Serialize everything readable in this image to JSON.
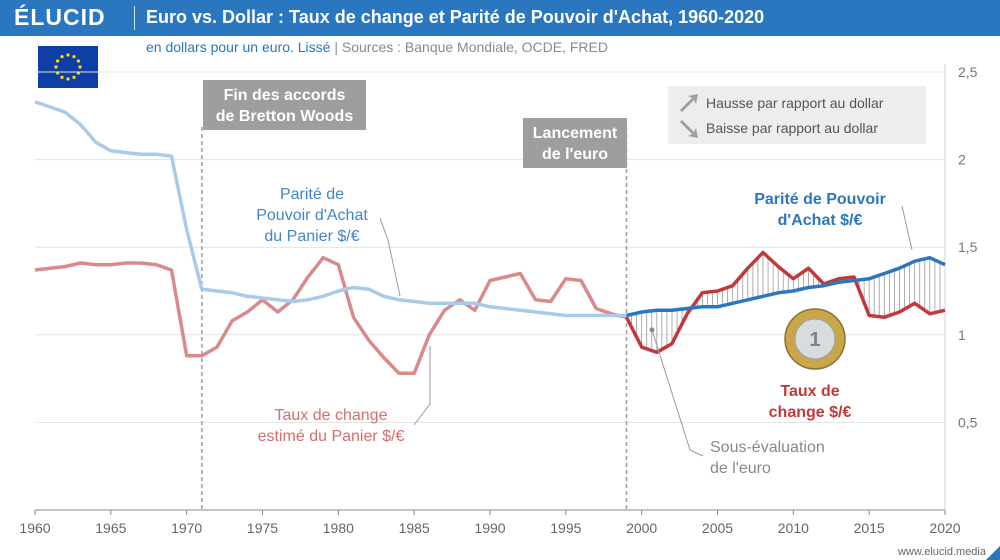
{
  "header": {
    "logo": "ÉLUCID",
    "title": "Euro vs. Dollar : Taux de change et Parité de Pouvoir d'Achat, 1960-2020",
    "subtitle": "en dollars pour un euro. Lissé",
    "sources": "Sources : Banque Mondiale, OCDE, FRED"
  },
  "footer": {
    "url": "www.elucid.media"
  },
  "colors": {
    "brand": "#2b77bf",
    "ppp_before": "#a9cbe8",
    "ppp_after": "#2b77bf",
    "fx_before": "#d98a8a",
    "fx_after": "#c03a3a",
    "annotation_box": "#9e9e9e"
  },
  "legend": {
    "up": "Hausse par rapport au dollar",
    "down": "Baisse par rapport au dollar"
  },
  "annotations": {
    "bretton_woods": [
      "Fin des accords",
      "de Bretton Woods"
    ],
    "euro_launch": [
      "Lancement",
      "de l'euro"
    ],
    "ppp_before": [
      "Parité de",
      "Pouvoir d'Achat",
      "du Panier $/€"
    ],
    "ppp_after": [
      "Parité de Pouvoir",
      "d'Achat $/€"
    ],
    "fx_before": [
      "Taux de change",
      "estimé du Panier $/€"
    ],
    "fx_after": [
      "Taux de",
      "change $/€"
    ],
    "undervaluation": [
      "Sous-évaluation",
      "de l'euro"
    ]
  },
  "chart_data": {
    "type": "line",
    "title": "Euro vs. Dollar : Taux de change et Parité de Pouvoir d'Achat, 1960-2020",
    "xlim": [
      1960,
      2020
    ],
    "ylim": [
      0,
      2.5
    ],
    "x_ticks": [
      1960,
      1965,
      1970,
      1975,
      1980,
      1985,
      1990,
      1995,
      2000,
      2005,
      2010,
      2015,
      2020
    ],
    "y_ticks": [
      0.5,
      1,
      1.5,
      2,
      2.5
    ],
    "y_tick_labels": [
      "0,5",
      "1",
      "1,5",
      "2",
      "2,5"
    ],
    "grid": true,
    "vertical_markers": [
      1971,
      1999
    ],
    "series": [
      {
        "name": "Parité de Pouvoir d'Achat $/€",
        "x": [
          1960,
          1961,
          1962,
          1963,
          1964,
          1965,
          1966,
          1967,
          1968,
          1969,
          1970,
          1971,
          1972,
          1973,
          1974,
          1975,
          1976,
          1977,
          1978,
          1979,
          1980,
          1981,
          1982,
          1983,
          1984,
          1985,
          1986,
          1987,
          1988,
          1989,
          1990,
          1991,
          1992,
          1993,
          1994,
          1995,
          1996,
          1997,
          1998,
          1999,
          2000,
          2001,
          2002,
          2003,
          2004,
          2005,
          2006,
          2007,
          2008,
          2009,
          2010,
          2011,
          2012,
          2013,
          2014,
          2015,
          2016,
          2017,
          2018,
          2019,
          2020
        ],
        "values": [
          2.33,
          2.3,
          2.27,
          2.2,
          2.1,
          2.05,
          2.04,
          2.03,
          2.03,
          2.02,
          1.6,
          1.26,
          1.25,
          1.24,
          1.22,
          1.21,
          1.2,
          1.19,
          1.2,
          1.22,
          1.25,
          1.27,
          1.26,
          1.22,
          1.2,
          1.19,
          1.18,
          1.18,
          1.18,
          1.18,
          1.16,
          1.15,
          1.14,
          1.13,
          1.12,
          1.11,
          1.11,
          1.11,
          1.11,
          1.11,
          1.13,
          1.14,
          1.14,
          1.15,
          1.16,
          1.16,
          1.18,
          1.2,
          1.22,
          1.24,
          1.25,
          1.27,
          1.28,
          1.3,
          1.31,
          1.32,
          1.35,
          1.38,
          1.42,
          1.44,
          1.4
        ]
      },
      {
        "name": "Taux de change $/€",
        "x": [
          1960,
          1961,
          1962,
          1963,
          1964,
          1965,
          1966,
          1967,
          1968,
          1969,
          1970,
          1971,
          1972,
          1973,
          1974,
          1975,
          1976,
          1977,
          1978,
          1979,
          1980,
          1981,
          1982,
          1983,
          1984,
          1985,
          1986,
          1987,
          1988,
          1989,
          1990,
          1991,
          1992,
          1993,
          1994,
          1995,
          1996,
          1997,
          1998,
          1999,
          2000,
          2001,
          2002,
          2003,
          2004,
          2005,
          2006,
          2007,
          2008,
          2009,
          2010,
          2011,
          2012,
          2013,
          2014,
          2015,
          2016,
          2017,
          2018,
          2019,
          2020
        ],
        "values": [
          1.37,
          1.38,
          1.39,
          1.41,
          1.4,
          1.4,
          1.41,
          1.41,
          1.4,
          1.37,
          0.88,
          0.88,
          0.93,
          1.08,
          1.13,
          1.2,
          1.13,
          1.2,
          1.33,
          1.44,
          1.4,
          1.1,
          0.97,
          0.87,
          0.78,
          0.78,
          1.0,
          1.14,
          1.2,
          1.14,
          1.31,
          1.33,
          1.35,
          1.2,
          1.19,
          1.32,
          1.31,
          1.15,
          1.12,
          1.1,
          0.93,
          0.9,
          0.95,
          1.12,
          1.24,
          1.25,
          1.28,
          1.38,
          1.47,
          1.39,
          1.32,
          1.38,
          1.29,
          1.32,
          1.33,
          1.11,
          1.1,
          1.13,
          1.18,
          1.12,
          1.14
        ]
      }
    ]
  }
}
